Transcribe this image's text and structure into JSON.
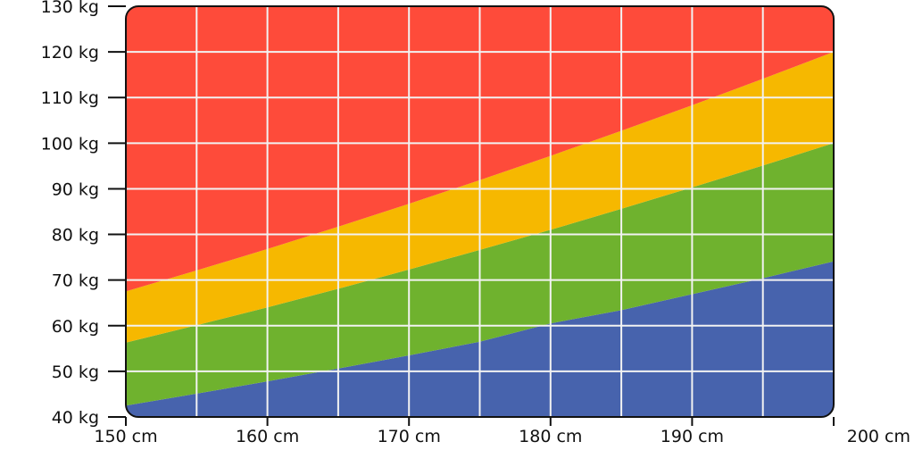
{
  "chart_data": {
    "type": "area",
    "title": "",
    "xlabel": "",
    "ylabel": "",
    "xlim": [
      150,
      200
    ],
    "ylim": [
      40,
      130
    ],
    "x_ticks": [
      {
        "value": 150,
        "label": "150 cm"
      },
      {
        "value": 160,
        "label": "160 cm"
      },
      {
        "value": 170,
        "label": "170 cm"
      },
      {
        "value": 180,
        "label": "180 cm"
      },
      {
        "value": 190,
        "label": "190 cm"
      },
      {
        "value": 200,
        "label": "200 cm"
      }
    ],
    "y_ticks": [
      {
        "value": 40,
        "label": "40 kg"
      },
      {
        "value": 50,
        "label": "50 kg"
      },
      {
        "value": 60,
        "label": "60 kg"
      },
      {
        "value": 70,
        "label": "70 kg"
      },
      {
        "value": 80,
        "label": "80 kg"
      },
      {
        "value": 90,
        "label": "90 kg"
      },
      {
        "value": 100,
        "label": "100 kg"
      },
      {
        "value": 110,
        "label": "110 kg"
      },
      {
        "value": 120,
        "label": "120 kg"
      },
      {
        "value": 130,
        "label": "130 kg"
      }
    ],
    "grid": true,
    "grid_step_x": 5,
    "grid_step_y": 10,
    "boundaries": [
      {
        "x": [
          150,
          155,
          160,
          165,
          170,
          175,
          180,
          185,
          190,
          195,
          200
        ],
        "y": [
          42.5,
          45.1,
          47.8,
          50.6,
          53.5,
          56.5,
          60.5,
          63.4,
          66.9,
          70.4,
          74.1
        ]
      },
      {
        "x": [
          150,
          155,
          160,
          165,
          170,
          175,
          180,
          185,
          190,
          195,
          200
        ],
        "y": [
          56.3,
          60.1,
          64.0,
          68.1,
          72.3,
          76.6,
          81.0,
          85.6,
          90.3,
          95.1,
          100.0
        ]
      },
      {
        "x": [
          150,
          155,
          160,
          165,
          170,
          175,
          180,
          185,
          190,
          195,
          200
        ],
        "y": [
          67.5,
          72.1,
          76.8,
          81.7,
          86.7,
          91.9,
          97.2,
          102.7,
          108.3,
          114.1,
          120.0
        ]
      }
    ],
    "bands": [
      {
        "color": "#4763ad"
      },
      {
        "color": "#6fb22e"
      },
      {
        "color": "#f6b800"
      },
      {
        "color": "#fe4b3a"
      }
    ],
    "grid_color": "#f2f2f2",
    "frame_color": "#111111"
  }
}
